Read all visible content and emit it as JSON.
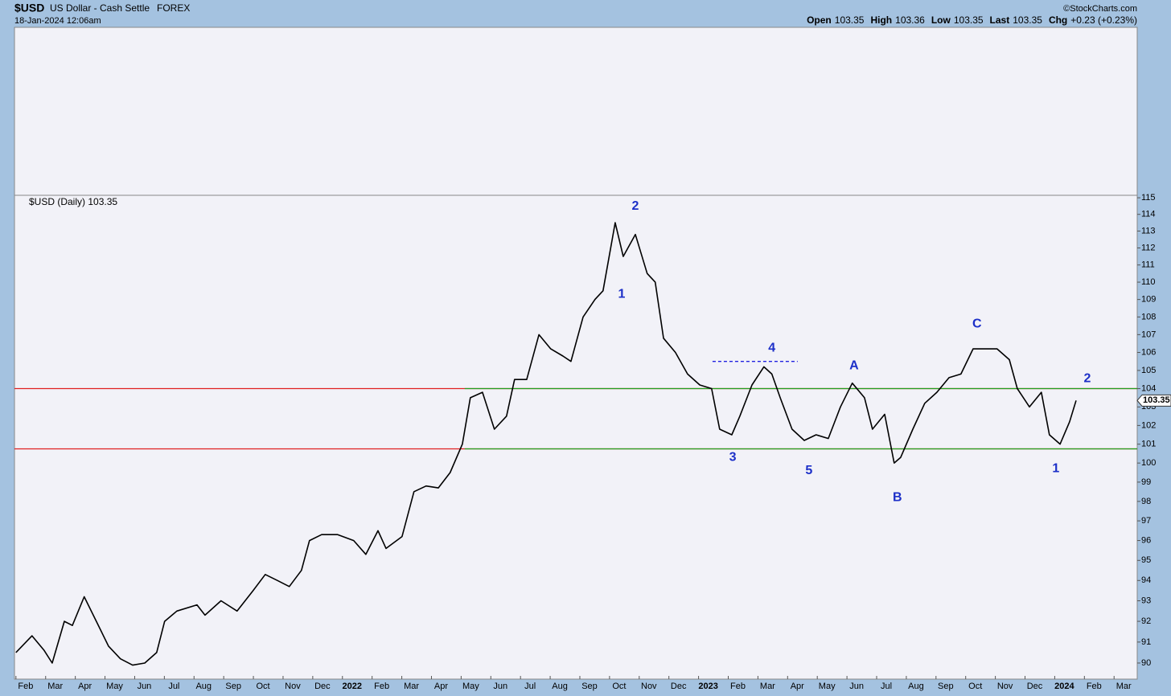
{
  "header": {
    "symbol": "$USD",
    "name": "US Dollar - Cash Settle",
    "exchange": "FOREX",
    "date": "18-Jan-2024 12:06am",
    "credit": "©StockCharts.com",
    "quote": [
      {
        "label": "Open",
        "value": "103.35"
      },
      {
        "label": "High",
        "value": "103.36"
      },
      {
        "label": "Low",
        "value": "103.35"
      },
      {
        "label": "Last",
        "value": "103.35"
      },
      {
        "label": "Chg",
        "value": "+0.23 (+0.23%)"
      }
    ]
  },
  "chart_data": {
    "type": "line",
    "legend": "$USD (Daily) 103.35",
    "last_label": "103.35",
    "log_scale": true,
    "color": "#000000",
    "x": [
      1.0,
      1.54,
      1.95,
      2.22,
      2.63,
      2.9,
      3.3,
      3.71,
      4.12,
      4.52,
      4.93,
      5.34,
      5.74,
      6.01,
      6.42,
      7.1,
      7.37,
      7.91,
      8.45,
      8.99,
      9.4,
      9.81,
      10.21,
      10.62,
      10.89,
      11.3,
      11.84,
      12.38,
      12.79,
      13.2,
      13.47,
      14.01,
      14.41,
      14.82,
      15.23,
      15.63,
      16.04,
      16.31,
      16.72,
      17.12,
      17.53,
      17.8,
      18.21,
      18.62,
      19.02,
      19.43,
      19.7,
      20.11,
      20.51,
      20.78,
      21.19,
      21.46,
      21.87,
      22.27,
      22.54,
      22.82,
      23.22,
      23.63,
      24.04,
      24.44,
      24.71,
      25.12,
      25.39,
      25.8,
      26.2,
      26.47,
      26.75,
      27.15,
      27.56,
      27.96,
      28.37,
      28.78,
      29.18,
      29.59,
      29.86,
      30.27,
      30.59,
      30.81,
      31.22,
      31.62,
      32.03,
      32.44,
      32.84,
      33.25,
      33.66,
      34.06,
      34.47,
      34.74,
      35.15,
      35.55,
      35.82,
      36.18,
      36.5,
      36.72
    ],
    "series": [
      {
        "name": "$USD",
        "values": [
          90.5,
          91.3,
          90.6,
          90.0,
          92.0,
          91.8,
          93.2,
          92.0,
          90.8,
          90.2,
          89.9,
          90.0,
          90.5,
          92.0,
          92.5,
          92.8,
          92.3,
          93.0,
          92.5,
          93.5,
          94.3,
          94.0,
          93.7,
          94.5,
          96.0,
          96.3,
          96.3,
          96.0,
          95.3,
          96.5,
          95.6,
          96.2,
          98.5,
          98.8,
          98.7,
          99.5,
          101.0,
          103.5,
          103.8,
          101.8,
          102.5,
          104.5,
          104.5,
          107.0,
          106.2,
          105.8,
          105.5,
          108.0,
          109.0,
          109.5,
          113.5,
          111.5,
          112.8,
          110.5,
          110.0,
          106.8,
          106.0,
          104.8,
          104.2,
          104.0,
          101.8,
          101.5,
          102.5,
          104.2,
          105.2,
          104.8,
          103.5,
          101.8,
          101.2,
          101.5,
          101.3,
          103.0,
          104.3,
          103.5,
          101.8,
          102.6,
          100.0,
          100.3,
          101.8,
          103.2,
          103.8,
          104.6,
          104.8,
          106.2,
          106.2,
          106.2,
          105.6,
          104.0,
          103.0,
          103.8,
          101.5,
          101.0,
          102.2,
          103.35
        ]
      }
    ],
    "xlim": [
      0.95,
      38.78
    ],
    "ylim": [
      89.24,
      115.15
    ],
    "yticks": [
      90,
      91,
      92,
      93,
      94,
      95,
      96,
      97,
      98,
      99,
      100,
      101,
      102,
      103,
      104,
      105,
      106,
      107,
      108,
      109,
      110,
      111,
      112,
      113,
      114,
      115
    ],
    "xticks": [
      {
        "value": 1,
        "label": "Feb"
      },
      {
        "value": 2,
        "label": "Mar"
      },
      {
        "value": 3,
        "label": "Apr"
      },
      {
        "value": 4,
        "label": "May"
      },
      {
        "value": 5,
        "label": "Jun"
      },
      {
        "value": 6,
        "label": "Jul"
      },
      {
        "value": 7,
        "label": "Aug"
      },
      {
        "value": 8,
        "label": "Sep"
      },
      {
        "value": 9,
        "label": "Oct"
      },
      {
        "value": 10,
        "label": "Nov"
      },
      {
        "value": 11,
        "label": "Dec"
      },
      {
        "value": 12,
        "label": "2022"
      },
      {
        "value": 13,
        "label": "Feb"
      },
      {
        "value": 14,
        "label": "Mar"
      },
      {
        "value": 15,
        "label": "Apr"
      },
      {
        "value": 16,
        "label": "May"
      },
      {
        "value": 17,
        "label": "Jun"
      },
      {
        "value": 18,
        "label": "Jul"
      },
      {
        "value": 19,
        "label": "Aug"
      },
      {
        "value": 20,
        "label": "Sep"
      },
      {
        "value": 21,
        "label": "Oct"
      },
      {
        "value": 22,
        "label": "Nov"
      },
      {
        "value": 23,
        "label": "Dec"
      },
      {
        "value": 24,
        "label": "2023"
      },
      {
        "value": 25,
        "label": "Feb"
      },
      {
        "value": 26,
        "label": "Mar"
      },
      {
        "value": 27,
        "label": "Apr"
      },
      {
        "value": 28,
        "label": "May"
      },
      {
        "value": 29,
        "label": "Jun"
      },
      {
        "value": 30,
        "label": "Jul"
      },
      {
        "value": 31,
        "label": "Aug"
      },
      {
        "value": 32,
        "label": "Sep"
      },
      {
        "value": 33,
        "label": "Oct"
      },
      {
        "value": 34,
        "label": "Nov"
      },
      {
        "value": 35,
        "label": "Dec"
      },
      {
        "value": 36,
        "label": "2024"
      },
      {
        "value": 37,
        "label": "Feb"
      },
      {
        "value": 38,
        "label": "Mar"
      }
    ],
    "lines": [
      {
        "value": 104.0,
        "color": "#e02020",
        "from": 0.95,
        "to": 38.78
      },
      {
        "value": 100.75,
        "color": "#e02020",
        "from": 0.95,
        "to": 38.78
      },
      {
        "value": 104.0,
        "color": "#20a020",
        "from": 16.12,
        "to": 38.78
      },
      {
        "value": 100.75,
        "color": "#20a020",
        "from": 16.12,
        "to": 38.78
      },
      {
        "value": 105.5,
        "color": "#2020e0",
        "from": 24.47,
        "to": 27.34,
        "dashed": true
      }
    ],
    "annotations": [
      {
        "text": "1",
        "x": 21.41,
        "y": 109.3
      },
      {
        "text": "2",
        "x": 21.87,
        "y": 114.47
      },
      {
        "text": "3",
        "x": 25.15,
        "y": 100.3
      },
      {
        "text": "4",
        "x": 26.47,
        "y": 106.24
      },
      {
        "text": "5",
        "x": 27.72,
        "y": 99.6
      },
      {
        "text": "A",
        "x": 29.24,
        "y": 105.26
      },
      {
        "text": "B",
        "x": 30.7,
        "y": 98.2
      },
      {
        "text": "C",
        "x": 33.38,
        "y": 107.6
      },
      {
        "text": "1",
        "x": 36.04,
        "y": 99.7
      },
      {
        "text": "2",
        "x": 37.1,
        "y": 104.55
      }
    ]
  }
}
